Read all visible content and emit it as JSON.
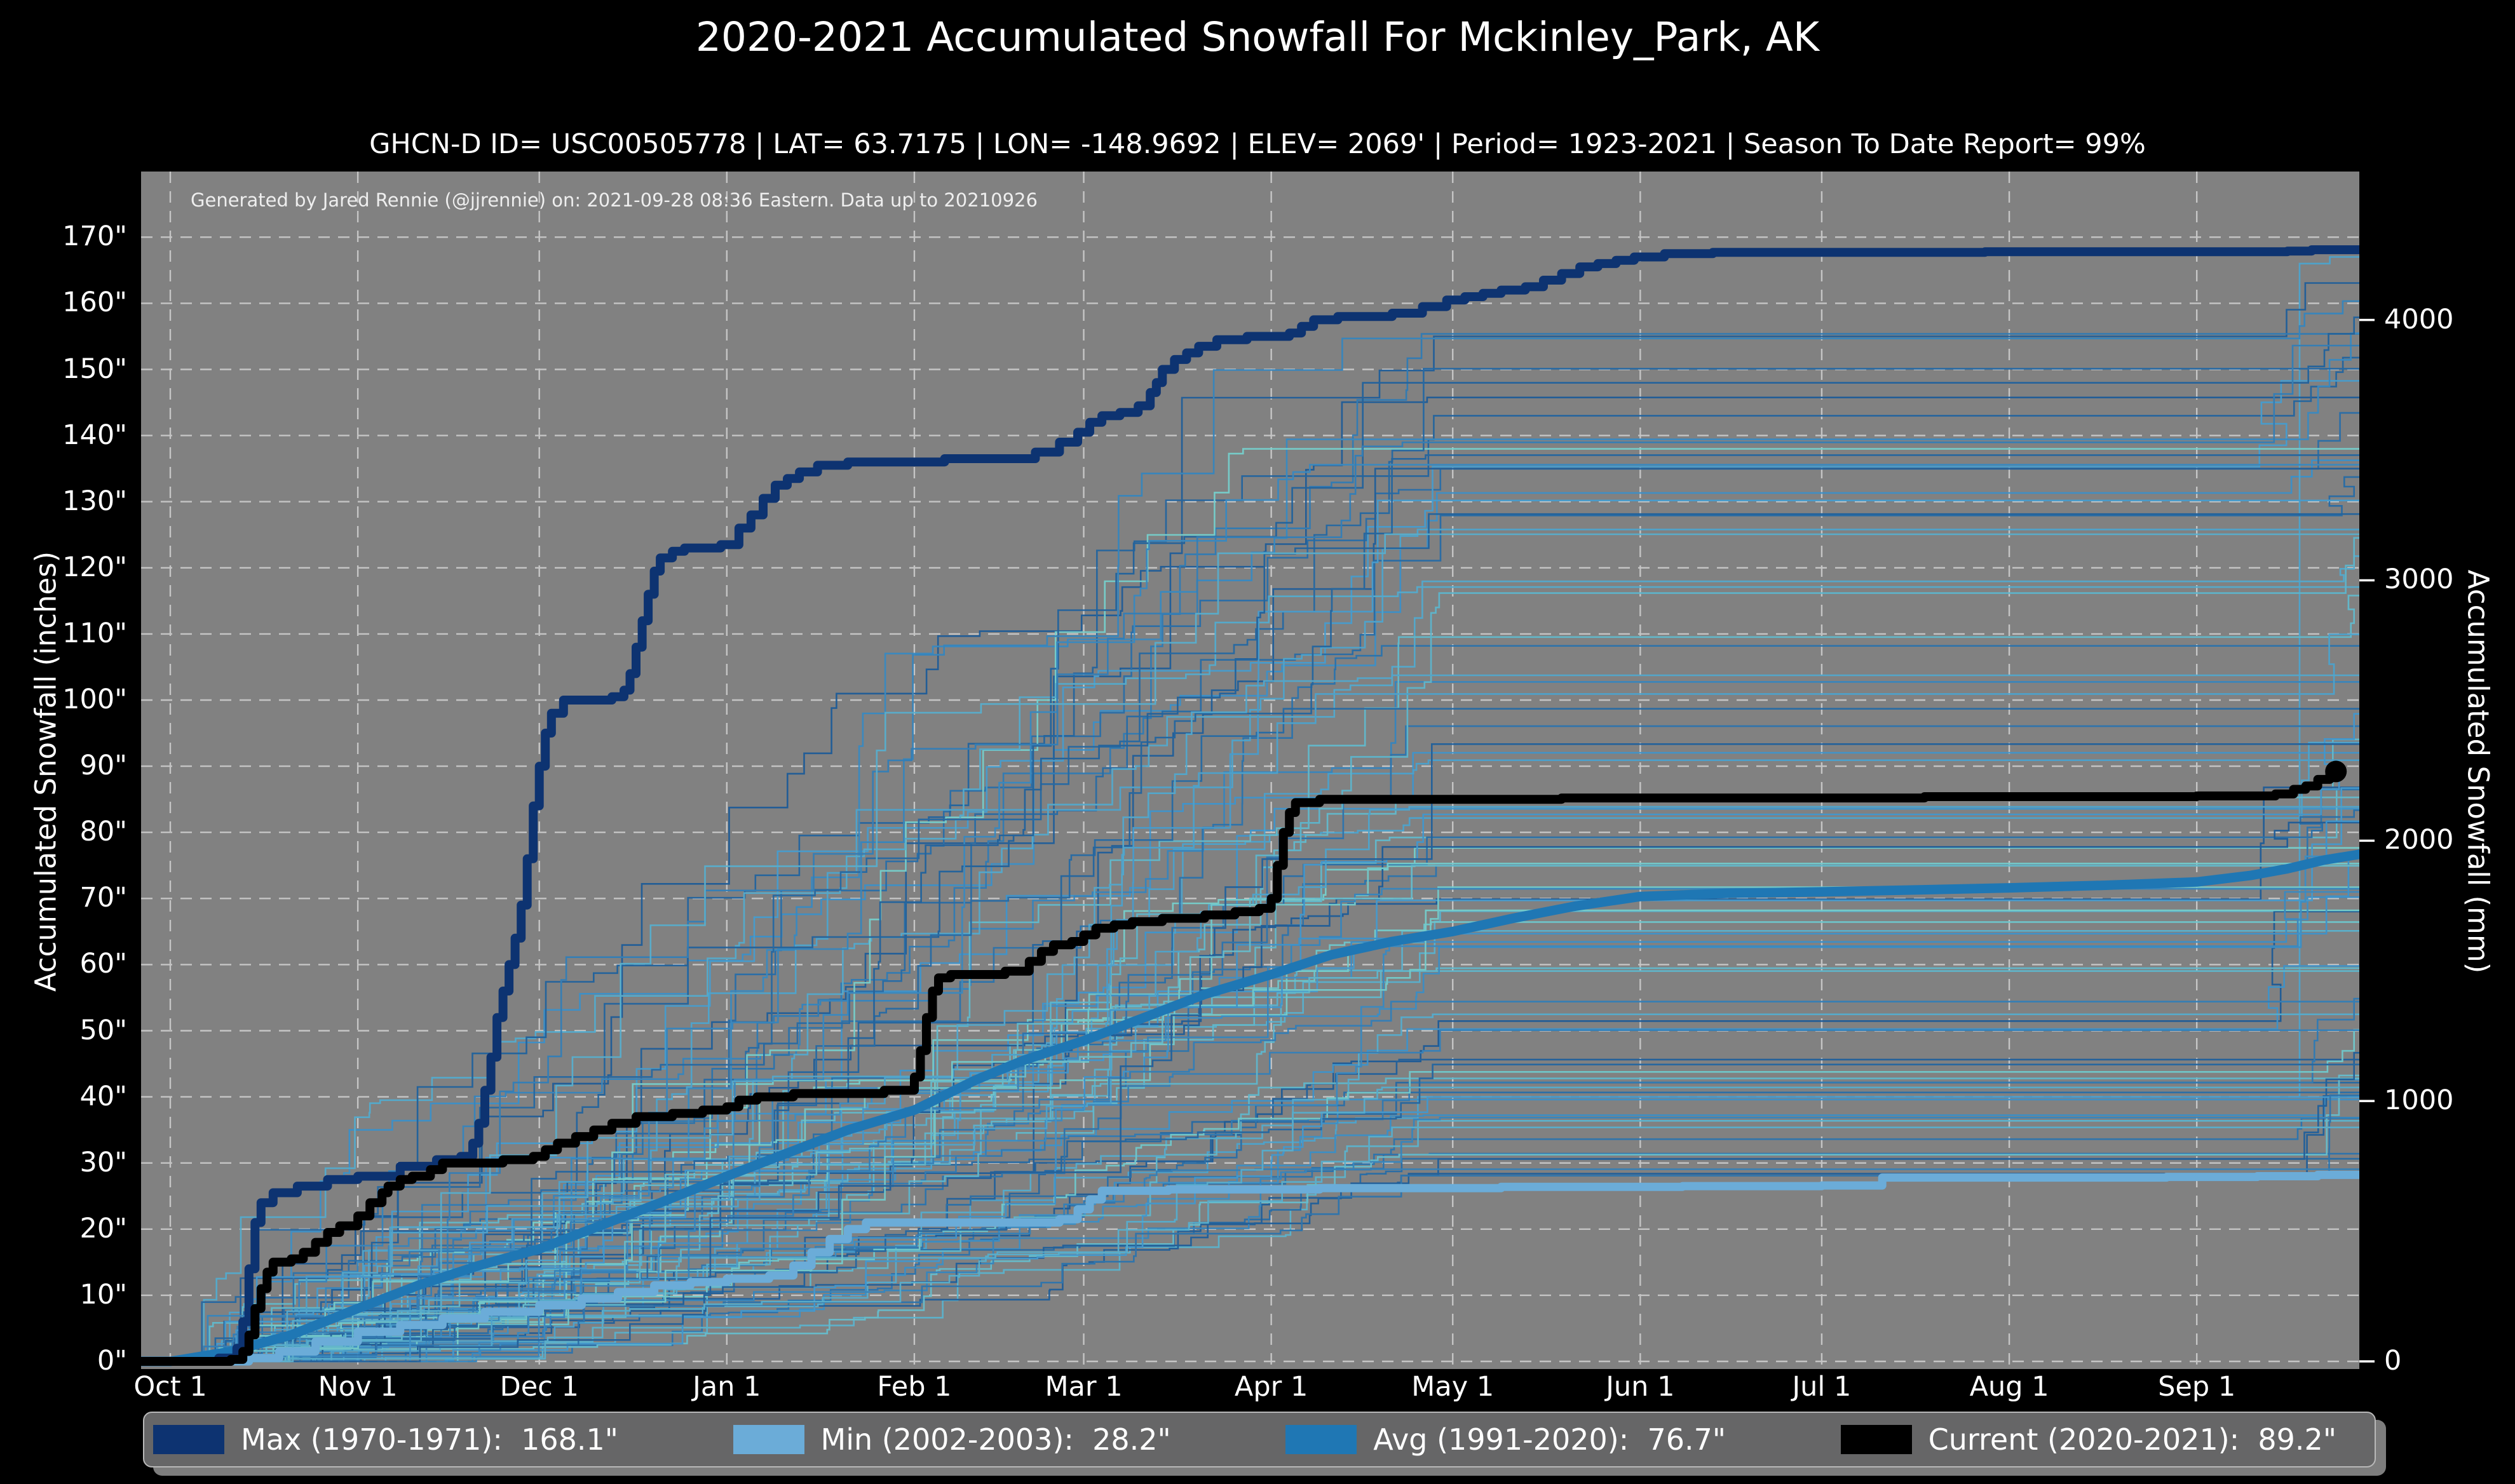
{
  "page": {
    "title": "2020-2021 Accumulated Snowfall For Mckinley_Park, AK",
    "subtitle": "GHCN-D ID= USC00505778 | LAT= 63.7175 | LON= -148.9692 | ELEV= 2069' | Period= 1923-2021 | Season To Date Report= 99%",
    "note": "Generated by Jared Rennie (@jjrennie) on: 2021-09-28 08:36 Eastern. Data up to 20210926"
  },
  "legend": {
    "items": [
      {
        "label": "Max (1970-1971):  168.1\"",
        "color": "#0d3371"
      },
      {
        "label": "Min (2002-2003):  28.2\"",
        "color": "#6bacd8"
      },
      {
        "label": "Avg (1991-2020):  76.7\"",
        "color": "#1f77b4"
      },
      {
        "label": "Current (2020-2021):  89.2\"",
        "color": "#000000"
      }
    ]
  },
  "chart_data": {
    "type": "line",
    "title": "2020-2021 Accumulated Snowfall For Mckinley_Park, AK",
    "plot_bg": "#818181",
    "grid_color": "#c9c9c9",
    "x_axis": {
      "tick_labels": [
        "Oct 1",
        "Nov 1",
        "Dec 1",
        "Jan 1",
        "Feb 1",
        "Mar 1",
        "Apr 1",
        "May 1",
        "Jun 1",
        "Jul 1",
        "Aug 1",
        "Sep 1"
      ],
      "tick_days": [
        0,
        31,
        61,
        92,
        123,
        151,
        182,
        212,
        243,
        273,
        304,
        335
      ],
      "day_range": [
        -4.8,
        362.3
      ]
    },
    "y_left": {
      "label": "Accumulated Snowfall (inches)",
      "tick_values": [
        0,
        10,
        20,
        30,
        40,
        50,
        60,
        70,
        80,
        90,
        100,
        110,
        120,
        130,
        140,
        150,
        160,
        170
      ],
      "tick_suffix": "\"",
      "range_inches": [
        -1.2,
        180
      ]
    },
    "y_right": {
      "label": "Accumulated Snowfall (mm)",
      "tick_values_mm": [
        0,
        1000,
        2000,
        3000,
        4000
      ],
      "mm_per_inch": 25.4
    },
    "series": [
      {
        "name": "Min (2002-2003)",
        "total": 28.2,
        "color": "#6bacd8",
        "width": 13,
        "interp": "step",
        "extend_right": true,
        "points": [
          [
            0,
            0
          ],
          [
            13,
            0.5
          ],
          [
            18,
            1.5
          ],
          [
            24,
            3
          ],
          [
            31,
            4.5
          ],
          [
            38,
            5.5
          ],
          [
            45,
            6.5
          ],
          [
            52,
            7.5
          ],
          [
            61,
            8.5
          ],
          [
            68,
            9.5
          ],
          [
            74,
            10.5
          ],
          [
            80,
            11.5
          ],
          [
            86,
            12
          ],
          [
            92,
            12.5
          ],
          [
            99,
            13
          ],
          [
            103,
            14.5
          ],
          [
            106,
            16.5
          ],
          [
            109,
            18.5
          ],
          [
            112,
            20
          ],
          [
            115,
            21
          ],
          [
            147,
            21.5
          ],
          [
            150,
            23
          ],
          [
            152,
            24.5
          ],
          [
            154,
            25.8
          ],
          [
            165,
            26
          ],
          [
            190,
            26.2
          ],
          [
            220,
            26.4
          ],
          [
            250,
            26.5
          ],
          [
            273,
            26.6
          ],
          [
            283,
            27.8
          ],
          [
            330,
            27.9
          ],
          [
            345,
            28
          ],
          [
            355,
            28.2
          ],
          [
            362,
            28.2
          ]
        ]
      },
      {
        "name": "Avg (1991-2020)",
        "total": 76.7,
        "color": "#1f77b4",
        "width": 15,
        "interp": "linear",
        "extend_right": true,
        "points": [
          [
            0,
            0
          ],
          [
            10,
            1.5
          ],
          [
            20,
            4
          ],
          [
            31,
            8
          ],
          [
            41,
            11.5
          ],
          [
            51,
            14.5
          ],
          [
            61,
            17
          ],
          [
            71,
            20.5
          ],
          [
            81,
            24
          ],
          [
            92,
            28
          ],
          [
            102,
            31.5
          ],
          [
            112,
            35
          ],
          [
            123,
            38
          ],
          [
            133,
            42.5
          ],
          [
            141,
            45.5
          ],
          [
            151,
            48.5
          ],
          [
            161,
            52
          ],
          [
            171,
            55.5
          ],
          [
            182,
            58.5
          ],
          [
            192,
            61.5
          ],
          [
            202,
            63.5
          ],
          [
            212,
            65
          ],
          [
            222,
            67
          ],
          [
            232,
            68.8
          ],
          [
            243,
            70.3
          ],
          [
            258,
            70.8
          ],
          [
            273,
            71
          ],
          [
            289,
            71.3
          ],
          [
            304,
            71.6
          ],
          [
            320,
            72
          ],
          [
            335,
            72.5
          ],
          [
            344,
            73.5
          ],
          [
            350,
            74.5
          ],
          [
            356,
            75.8
          ],
          [
            362,
            76.7
          ]
        ]
      },
      {
        "name": "Max (1970-1971)",
        "total": 168.1,
        "color": "#0d3371",
        "width": 14,
        "interp": "step",
        "extend_right": true,
        "points": [
          [
            0,
            0
          ],
          [
            8,
            0.5
          ],
          [
            11,
            2
          ],
          [
            12,
            6
          ],
          [
            13,
            14
          ],
          [
            14,
            21
          ],
          [
            15,
            24
          ],
          [
            17,
            25.5
          ],
          [
            21,
            26.5
          ],
          [
            26,
            27.5
          ],
          [
            31,
            28
          ],
          [
            38,
            29.5
          ],
          [
            44,
            30.5
          ],
          [
            48,
            31
          ],
          [
            50,
            33
          ],
          [
            51,
            36
          ],
          [
            52,
            41
          ],
          [
            53,
            46
          ],
          [
            54,
            52
          ],
          [
            55,
            56
          ],
          [
            56,
            60
          ],
          [
            57,
            64
          ],
          [
            58,
            69
          ],
          [
            59,
            76
          ],
          [
            60,
            84
          ],
          [
            61,
            90
          ],
          [
            62,
            95
          ],
          [
            63,
            98
          ],
          [
            65,
            100
          ],
          [
            73,
            100.5
          ],
          [
            75,
            101.5
          ],
          [
            76,
            104
          ],
          [
            77,
            108
          ],
          [
            78,
            112
          ],
          [
            79,
            116
          ],
          [
            80,
            119.5
          ],
          [
            81,
            121.5
          ],
          [
            83,
            122.5
          ],
          [
            85,
            123
          ],
          [
            91,
            123.5
          ],
          [
            94,
            126
          ],
          [
            96,
            128
          ],
          [
            98,
            130.5
          ],
          [
            100,
            132.5
          ],
          [
            102,
            133.5
          ],
          [
            104,
            134.5
          ],
          [
            107,
            135.5
          ],
          [
            112,
            136
          ],
          [
            128,
            136.5
          ],
          [
            143,
            137.5
          ],
          [
            147,
            139
          ],
          [
            150,
            140.5
          ],
          [
            152,
            142
          ],
          [
            154,
            143
          ],
          [
            157,
            143.5
          ],
          [
            160,
            144.5
          ],
          [
            162,
            146.5
          ],
          [
            163,
            148
          ],
          [
            164,
            150
          ],
          [
            166,
            151.5
          ],
          [
            168,
            152.5
          ],
          [
            170,
            153.5
          ],
          [
            173,
            154.5
          ],
          [
            178,
            155
          ],
          [
            185,
            155.5
          ],
          [
            187,
            156.5
          ],
          [
            189,
            157.5
          ],
          [
            193,
            158
          ],
          [
            202,
            158.5
          ],
          [
            207,
            159.5
          ],
          [
            211,
            160.5
          ],
          [
            214,
            161
          ],
          [
            217,
            161.5
          ],
          [
            220,
            162
          ],
          [
            224,
            162.5
          ],
          [
            227,
            163.5
          ],
          [
            230,
            164.5
          ],
          [
            233,
            165.5
          ],
          [
            236,
            166
          ],
          [
            239,
            166.5
          ],
          [
            242,
            167
          ],
          [
            247,
            167.5
          ],
          [
            255,
            167.7
          ],
          [
            300,
            167.8
          ],
          [
            350,
            167.9
          ],
          [
            354,
            168.1
          ],
          [
            362,
            168.1
          ]
        ]
      },
      {
        "name": "Current (2020-2021)",
        "total": 89.2,
        "color": "#000000",
        "width": 14,
        "interp": "step",
        "extend_right": false,
        "end_marker": true,
        "marker_radius": 17,
        "points": [
          [
            0,
            0
          ],
          [
            10,
            0.3
          ],
          [
            12,
            1.5
          ],
          [
            13,
            4
          ],
          [
            14,
            8
          ],
          [
            15,
            11
          ],
          [
            16,
            13.5
          ],
          [
            17,
            15
          ],
          [
            20,
            15.5
          ],
          [
            22,
            16.5
          ],
          [
            24,
            18
          ],
          [
            26,
            19.5
          ],
          [
            28,
            20.5
          ],
          [
            31,
            22
          ],
          [
            33,
            24
          ],
          [
            35,
            25.5
          ],
          [
            36,
            26.5
          ],
          [
            38,
            27.5
          ],
          [
            40,
            28
          ],
          [
            43,
            29
          ],
          [
            45,
            30
          ],
          [
            55,
            30.5
          ],
          [
            60,
            31
          ],
          [
            62,
            32
          ],
          [
            64,
            33
          ],
          [
            67,
            34
          ],
          [
            70,
            35
          ],
          [
            73,
            36
          ],
          [
            77,
            37
          ],
          [
            83,
            37.5
          ],
          [
            88,
            38
          ],
          [
            92,
            38.5
          ],
          [
            94,
            39.5
          ],
          [
            97,
            40
          ],
          [
            103,
            40.5
          ],
          [
            118,
            41
          ],
          [
            123,
            43
          ],
          [
            124,
            47
          ],
          [
            125,
            52
          ],
          [
            126,
            56
          ],
          [
            127,
            58
          ],
          [
            129,
            58.5
          ],
          [
            138,
            59
          ],
          [
            142,
            60.5
          ],
          [
            144,
            62
          ],
          [
            146,
            63
          ],
          [
            149,
            63.5
          ],
          [
            151,
            64.5
          ],
          [
            153,
            65.5
          ],
          [
            156,
            66
          ],
          [
            159,
            66.5
          ],
          [
            164,
            67
          ],
          [
            171,
            67.5
          ],
          [
            176,
            68
          ],
          [
            180,
            68.5
          ],
          [
            182,
            70
          ],
          [
            183,
            75
          ],
          [
            184,
            80
          ],
          [
            185,
            83
          ],
          [
            186,
            84.5
          ],
          [
            190,
            85
          ],
          [
            230,
            85.2
          ],
          [
            290,
            85.4
          ],
          [
            335,
            85.5
          ],
          [
            348,
            85.8
          ],
          [
            351,
            86.5
          ],
          [
            353,
            87
          ],
          [
            355,
            88
          ],
          [
            357,
            89
          ],
          [
            358,
            89.2
          ]
        ]
      }
    ],
    "background_seasons": {
      "description": "thin unlabeled accumulation curves for each season 1923-2021",
      "count": 88,
      "seed": 42,
      "stroke_width": 2.6,
      "opacity": 0.95,
      "final_range_inches": [
        28,
        158
      ],
      "color_ramp": [
        "#1c5a96",
        "#3f97cf",
        "#79d2cc"
      ],
      "late_jump_chance": 0.38,
      "spike_line": {
        "index": 5,
        "base": 40,
        "jump_to": 166,
        "jump_day": 349
      }
    },
    "legend_position": "bottom",
    "grid": true
  }
}
